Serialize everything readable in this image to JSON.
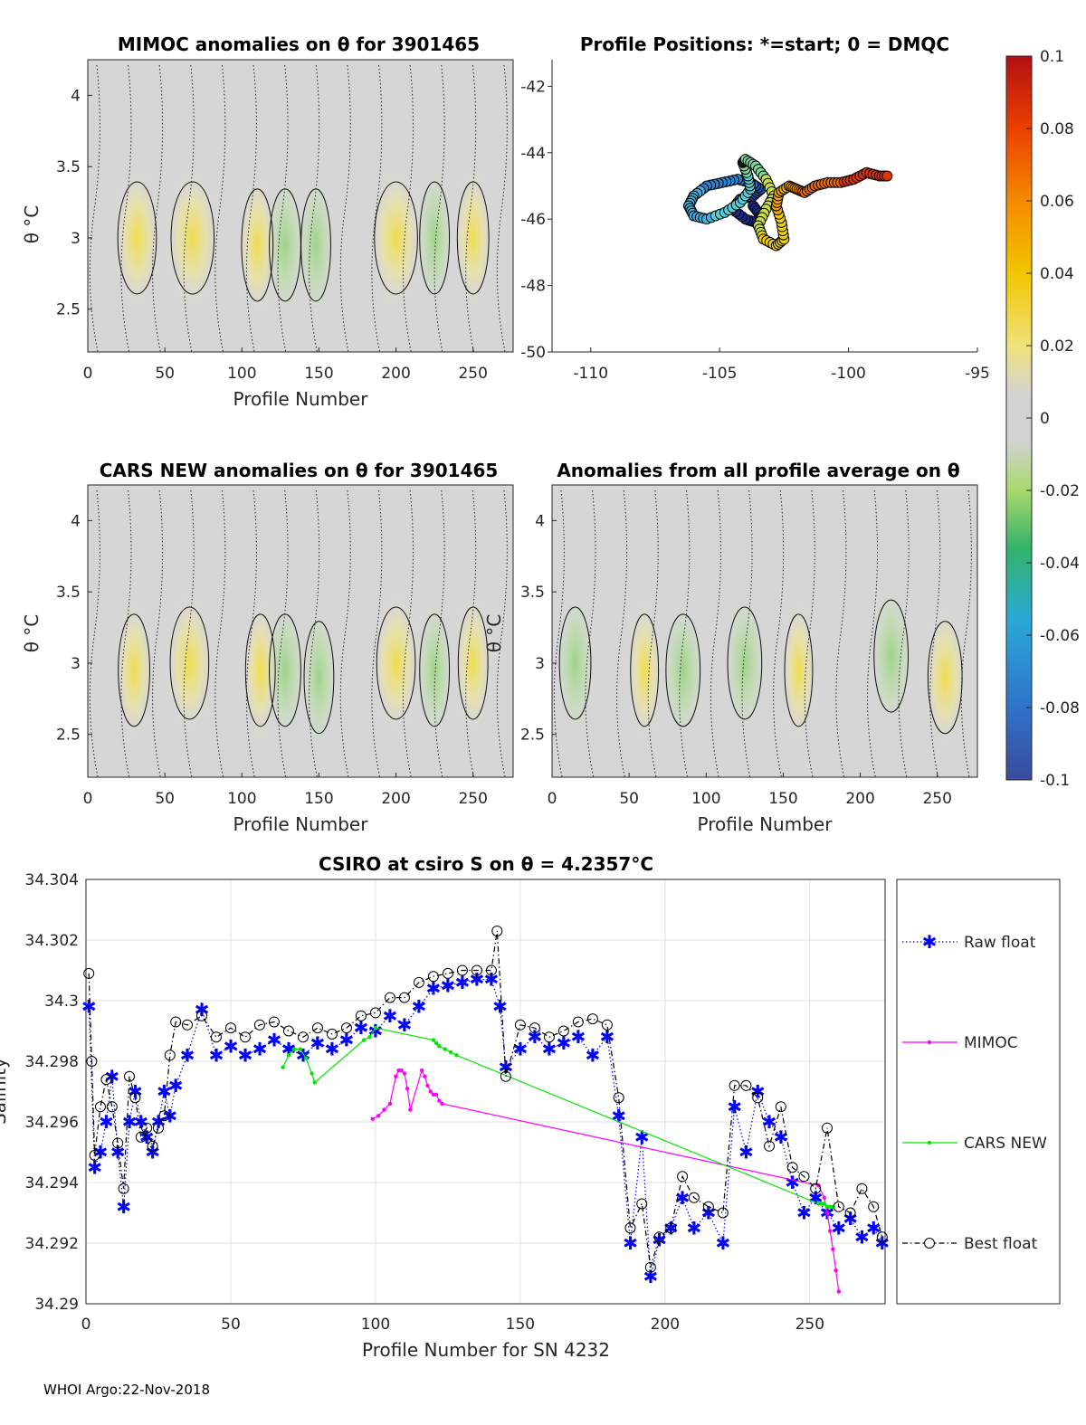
{
  "chart_data": [
    {
      "id": "mimoc",
      "type": "heatmap",
      "title": "MIMOC anomalies on θ  for 3901465",
      "xlabel": "Profile Number",
      "ylabel": "θ °C",
      "xticks": [
        "0",
        "50",
        "100",
        "150",
        "200",
        "250"
      ],
      "yticks": [
        "2.5",
        "3",
        "3.5",
        "4"
      ],
      "xlim": [
        0,
        276
      ],
      "ylim": [
        2.2,
        4.25
      ],
      "anomaly_patches": [
        {
          "x": 32,
          "y": 3.0,
          "value": 0.02
        },
        {
          "x": 68,
          "y": 3.0,
          "value": 0.025
        },
        {
          "x": 110,
          "y": 2.95,
          "value": 0.012
        },
        {
          "x": 128,
          "y": 2.95,
          "value": -0.012
        },
        {
          "x": 148,
          "y": 2.95,
          "value": -0.01
        },
        {
          "x": 200,
          "y": 3.0,
          "value": 0.025
        },
        {
          "x": 225,
          "y": 3.0,
          "value": -0.01
        },
        {
          "x": 250,
          "y": 3.0,
          "value": 0.012
        }
      ]
    },
    {
      "id": "positions",
      "type": "scatter",
      "title": "Profile Positions: *=start; 0 = DMQC",
      "xticks": [
        "-110",
        "-105",
        "-100",
        "-95"
      ],
      "yticks": [
        "-42",
        "-44",
        "-46",
        "-48",
        "-50"
      ],
      "xlim": [
        -111.5,
        -95
      ],
      "ylim": [
        -50,
        -41.2
      ],
      "track_lon": [
        -103.7,
        -103.4,
        -103.6,
        -104.0,
        -104.5,
        -104.2,
        -103.7,
        -103.4,
        -103.8,
        -104.3,
        -104.9,
        -105.5,
        -106.0,
        -106.2,
        -106.0,
        -105.5,
        -104.8,
        -104.2,
        -103.8,
        -103.9,
        -104.1,
        -104.0,
        -103.6,
        -103.2,
        -102.9,
        -103.2,
        -103.5,
        -103.3,
        -102.8,
        -102.5,
        -102.6,
        -102.8,
        -102.7,
        -102.3,
        -102.0,
        -101.7,
        -101.3,
        -100.8,
        -100.3,
        -99.8,
        -99.3,
        -98.8,
        -98.4
      ],
      "track_lat": [
        -45.6,
        -45.9,
        -46.1,
        -46.0,
        -45.7,
        -45.4,
        -45.3,
        -45.1,
        -44.9,
        -44.8,
        -44.9,
        -45.0,
        -45.3,
        -45.6,
        -45.9,
        -46.0,
        -45.8,
        -45.5,
        -45.1,
        -44.7,
        -44.3,
        -44.2,
        -44.4,
        -44.8,
        -45.3,
        -45.7,
        -46.2,
        -46.6,
        -46.8,
        -46.6,
        -46.1,
        -45.6,
        -45.2,
        -45.0,
        -45.1,
        -45.2,
        -45.0,
        -44.9,
        -44.9,
        -44.8,
        -44.6,
        -44.7,
        -44.7
      ]
    },
    {
      "id": "cars",
      "type": "heatmap",
      "title": "CARS NEW anomalies on θ for 3901465",
      "xlabel": "Profile Number",
      "ylabel": "θ °C",
      "xticks": [
        "0",
        "50",
        "100",
        "150",
        "200",
        "250"
      ],
      "yticks": [
        "2.5",
        "3",
        "3.5",
        "4"
      ],
      "xlim": [
        0,
        276
      ],
      "ylim": [
        2.2,
        4.25
      ],
      "anomaly_patches": [
        {
          "x": 30,
          "y": 2.95,
          "value": 0.012
        },
        {
          "x": 66,
          "y": 3.0,
          "value": 0.02
        },
        {
          "x": 112,
          "y": 2.95,
          "value": 0.01
        },
        {
          "x": 128,
          "y": 2.95,
          "value": -0.012
        },
        {
          "x": 150,
          "y": 2.9,
          "value": -0.01
        },
        {
          "x": 200,
          "y": 3.0,
          "value": 0.02
        },
        {
          "x": 225,
          "y": 2.95,
          "value": -0.01
        },
        {
          "x": 250,
          "y": 3.0,
          "value": 0.01
        }
      ]
    },
    {
      "id": "avg",
      "type": "heatmap",
      "title": "Anomalies from all profile average on θ",
      "xlabel": "Profile Number",
      "ylabel": "θ °C",
      "xticks": [
        "0",
        "50",
        "100",
        "150",
        "200",
        "250"
      ],
      "yticks": [
        "2.5",
        "3",
        "3.5",
        "4"
      ],
      "xlim": [
        0,
        276
      ],
      "ylim": [
        2.2,
        4.25
      ],
      "anomaly_patches": [
        {
          "x": 15,
          "y": 3.0,
          "value": -0.012
        },
        {
          "x": 60,
          "y": 2.95,
          "value": 0.008
        },
        {
          "x": 85,
          "y": 2.95,
          "value": -0.015
        },
        {
          "x": 125,
          "y": 3.0,
          "value": -0.015
        },
        {
          "x": 160,
          "y": 2.95,
          "value": 0.008
        },
        {
          "x": 220,
          "y": 3.05,
          "value": -0.015
        },
        {
          "x": 255,
          "y": 2.9,
          "value": 0.015
        }
      ]
    },
    {
      "id": "colorbar",
      "type": "heatmap",
      "title": "",
      "ticks": [
        "0.1",
        "0.08",
        "0.06",
        "0.04",
        "0.02",
        "0",
        "-0.02",
        "-0.04",
        "-0.06",
        "-0.08",
        "-0.1"
      ],
      "range": [
        -0.1,
        0.1
      ]
    },
    {
      "id": "salinity",
      "type": "line",
      "title": "CSIRO at csiro S on θ = 4.2357°C",
      "xlabel": "Profile Number for SN 4232",
      "ylabel": "Salinity",
      "xticks": [
        "0",
        "50",
        "100",
        "150",
        "200",
        "250"
      ],
      "yticks": [
        "34.29",
        "34.292",
        "34.294",
        "34.296",
        "34.298",
        "34.3",
        "34.302",
        "34.304"
      ],
      "xlim": [
        0,
        276
      ],
      "ylim": [
        34.29,
        34.304
      ],
      "series": [
        {
          "name": "Raw float",
          "color": "#0000ff",
          "x": [
            1,
            3,
            5,
            7,
            9,
            11,
            13,
            15,
            17,
            19,
            21,
            23,
            25,
            27,
            29,
            31,
            35,
            40,
            45,
            50,
            55,
            60,
            65,
            70,
            75,
            80,
            85,
            90,
            95,
            100,
            105,
            110,
            115,
            120,
            125,
            130,
            135,
            140,
            143,
            145,
            150,
            155,
            160,
            165,
            170,
            175,
            180,
            184,
            188,
            192,
            195,
            198,
            202,
            206,
            210,
            215,
            220,
            224,
            228,
            232,
            236,
            240,
            244,
            248,
            252,
            256,
            260,
            264,
            268,
            272,
            275
          ],
          "y": [
            34.2998,
            34.2945,
            34.295,
            34.296,
            34.2975,
            34.295,
            34.2932,
            34.296,
            34.297,
            34.296,
            34.2955,
            34.295,
            34.296,
            34.297,
            34.2962,
            34.2972,
            34.2982,
            34.2997,
            34.2982,
            34.2985,
            34.2982,
            34.2984,
            34.2987,
            34.2984,
            34.2982,
            34.2986,
            34.2984,
            34.2987,
            34.2991,
            34.299,
            34.2995,
            34.2992,
            34.2998,
            34.3004,
            34.3005,
            34.3006,
            34.3007,
            34.3007,
            34.2998,
            34.2978,
            34.2984,
            34.2988,
            34.2984,
            34.2986,
            34.2988,
            34.2982,
            34.2988,
            34.2962,
            34.292,
            34.2955,
            34.2909,
            34.2921,
            34.2925,
            34.2935,
            34.2925,
            34.293,
            34.292,
            34.2965,
            34.295,
            34.297,
            34.296,
            34.2955,
            34.294,
            34.293,
            34.2935,
            34.293,
            34.2925,
            34.2928,
            34.2922,
            34.2925,
            34.292
          ]
        },
        {
          "name": "MIMOC",
          "color": "#ff00ff",
          "x": [
            99,
            101,
            103,
            105,
            107,
            108,
            109,
            110,
            111,
            112,
            116,
            117,
            118,
            119,
            120,
            121,
            122,
            123,
            253,
            255,
            256,
            257,
            258,
            259,
            260
          ],
          "y": [
            34.2961,
            34.2962,
            34.2964,
            34.2966,
            34.2975,
            34.2977,
            34.2977,
            34.2976,
            34.2971,
            34.2964,
            34.2977,
            34.2975,
            34.2972,
            34.297,
            34.2969,
            34.2969,
            34.2967,
            34.2966,
            34.2939,
            34.2935,
            34.293,
            34.2924,
            34.2918,
            34.2911,
            34.2904
          ]
        },
        {
          "name": "CARS NEW",
          "color": "#00e600",
          "x": [
            68,
            70,
            72,
            74,
            76,
            78,
            79,
            96,
            98,
            100,
            120,
            121,
            122,
            124,
            126,
            128,
            253,
            254,
            255,
            256,
            257,
            258
          ],
          "y": [
            34.2978,
            34.2982,
            34.2984,
            34.2984,
            34.2981,
            34.2976,
            34.2973,
            34.2987,
            34.2988,
            34.2991,
            34.2987,
            34.2986,
            34.2985,
            34.2984,
            34.2983,
            34.2982,
            34.2933,
            34.2933,
            34.2933,
            34.2932,
            34.2932,
            34.2932
          ]
        },
        {
          "name": "Best float",
          "color": "#000000",
          "x": [
            1,
            2,
            3,
            5,
            7,
            9,
            11,
            13,
            15,
            17,
            19,
            21,
            23,
            25,
            27,
            29,
            31,
            35,
            40,
            45,
            50,
            55,
            60,
            65,
            70,
            75,
            80,
            85,
            90,
            95,
            100,
            105,
            110,
            115,
            120,
            125,
            130,
            135,
            140,
            142,
            145,
            150,
            155,
            160,
            165,
            170,
            175,
            180,
            184,
            188,
            192,
            195,
            198,
            202,
            206,
            210,
            215,
            220,
            224,
            228,
            232,
            236,
            240,
            244,
            248,
            252,
            256,
            260,
            264,
            268,
            272,
            275
          ],
          "y": [
            34.3009,
            34.298,
            34.2949,
            34.2965,
            34.2974,
            34.2965,
            34.2953,
            34.2938,
            34.2975,
            34.2968,
            34.2955,
            34.2958,
            34.2952,
            34.2958,
            34.2962,
            34.2982,
            34.2993,
            34.2992,
            34.2995,
            34.2988,
            34.2991,
            34.2988,
            34.2992,
            34.2993,
            34.299,
            34.2988,
            34.2991,
            34.2989,
            34.2991,
            34.2995,
            34.2996,
            34.3001,
            34.3001,
            34.3006,
            34.3008,
            34.3009,
            34.301,
            34.301,
            34.301,
            34.3023,
            34.2975,
            34.2992,
            34.2991,
            34.2988,
            34.299,
            34.2993,
            34.2994,
            34.2992,
            34.2968,
            34.2925,
            34.2933,
            34.2912,
            34.2922,
            34.2925,
            34.2942,
            34.2935,
            34.2932,
            34.293,
            34.2972,
            34.2972,
            34.2968,
            34.2952,
            34.2965,
            34.2945,
            34.2942,
            34.2938,
            34.2958,
            34.2932,
            34.293,
            34.2938,
            34.2932,
            34.2922
          ]
        }
      ]
    }
  ],
  "footer": "WHOI Argo:22-Nov-2018"
}
